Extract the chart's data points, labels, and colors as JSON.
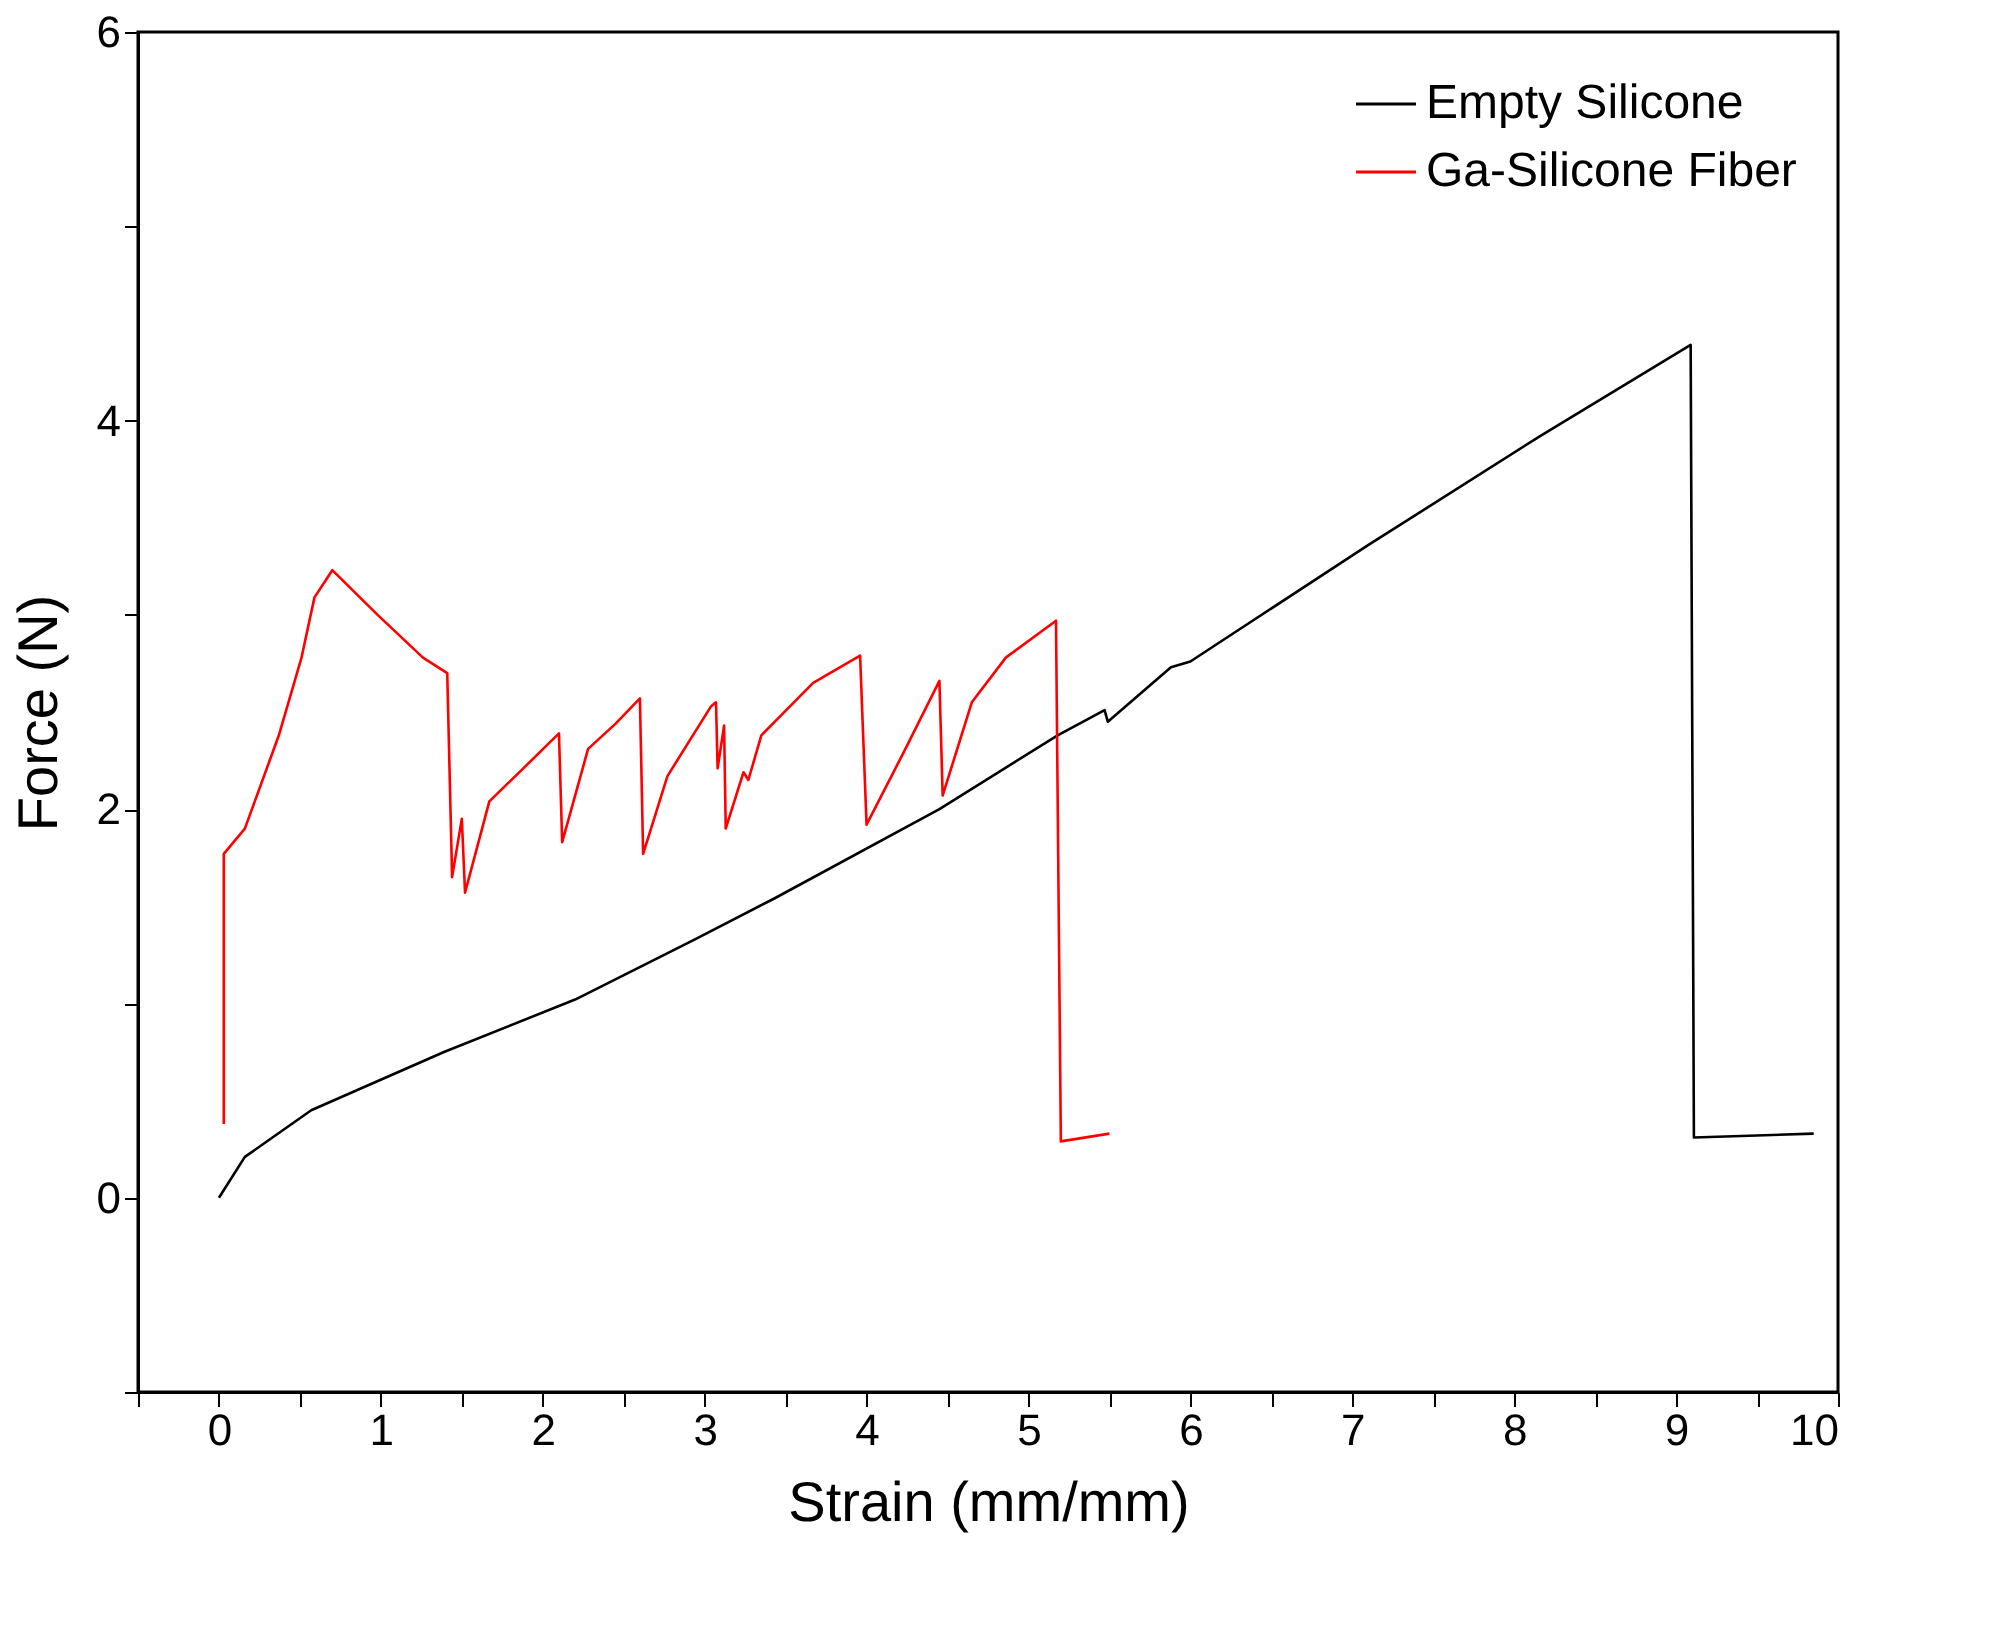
{
  "chart_data": {
    "type": "line",
    "xlabel": "Strain (mm/mm)",
    "ylabel": "Force (N)",
    "xlim": [
      -0.5,
      10
    ],
    "ylim": [
      -1,
      6
    ],
    "xticks": [
      {
        "value": -0.5,
        "label": null
      },
      0,
      {
        "value": 0.5,
        "label": null
      },
      1,
      {
        "value": 1.5,
        "label": null
      },
      2,
      {
        "value": 2.5,
        "label": null
      },
      3,
      {
        "value": 3.5,
        "label": null
      },
      4,
      {
        "value": 4.5,
        "label": null
      },
      5,
      {
        "value": 5.5,
        "label": null
      },
      6,
      {
        "value": 6.5,
        "label": null
      },
      7,
      {
        "value": 7.5,
        "label": null
      },
      8,
      {
        "value": 8.5,
        "label": null
      },
      9,
      {
        "value": 9.5,
        "label": null
      },
      10
    ],
    "yticks": [
      {
        "value": -1,
        "label": null
      },
      0,
      {
        "value": 1,
        "label": null
      },
      2,
      {
        "value": 3,
        "label": null
      },
      4,
      {
        "value": 5,
        "label": null
      },
      6
    ],
    "grid": false,
    "legend": "top right",
    "marker": "none",
    "line_style": "solid",
    "series": [
      {
        "name": "Empty Silicone",
        "color": "#000000",
        "x": [
          0,
          0.16,
          0.57,
          1.39,
          2.2,
          2.94,
          3.43,
          4.45,
          5.18,
          5.47,
          5.49,
          5.88,
          6.0,
          7.1,
          8.16,
          9.09,
          9.11,
          9.85
        ],
        "values": [
          0,
          0.21,
          0.45,
          0.75,
          1.02,
          1.33,
          1.54,
          2.0,
          2.38,
          2.51,
          2.45,
          2.73,
          2.76,
          3.36,
          3.92,
          4.39,
          0.31,
          0.33
        ]
      },
      {
        "name": "Ga-Silicone Fiber",
        "color": "#ff0000",
        "x": [
          0.03,
          0.03,
          0.16,
          0.37,
          0.51,
          0.59,
          0.7,
          0.98,
          1.26,
          1.41,
          1.44,
          1.5,
          1.52,
          1.67,
          1.88,
          2.1,
          2.12,
          2.28,
          2.45,
          2.6,
          2.62,
          2.77,
          3.04,
          3.07,
          3.08,
          3.12,
          3.13,
          3.24,
          3.27,
          3.35,
          3.67,
          3.96,
          4.0,
          4.24,
          4.45,
          4.47,
          4.65,
          4.86,
          5.17,
          5.2,
          5.5
        ],
        "values": [
          0.38,
          1.77,
          1.9,
          2.38,
          2.78,
          3.09,
          3.23,
          3.0,
          2.78,
          2.7,
          1.65,
          1.95,
          1.57,
          2.04,
          2.21,
          2.39,
          1.83,
          2.31,
          2.44,
          2.57,
          1.77,
          2.17,
          2.53,
          2.55,
          2.21,
          2.43,
          1.9,
          2.19,
          2.15,
          2.38,
          2.65,
          2.79,
          1.92,
          2.31,
          2.66,
          2.07,
          2.55,
          2.78,
          2.97,
          0.29,
          0.33
        ]
      }
    ]
  }
}
